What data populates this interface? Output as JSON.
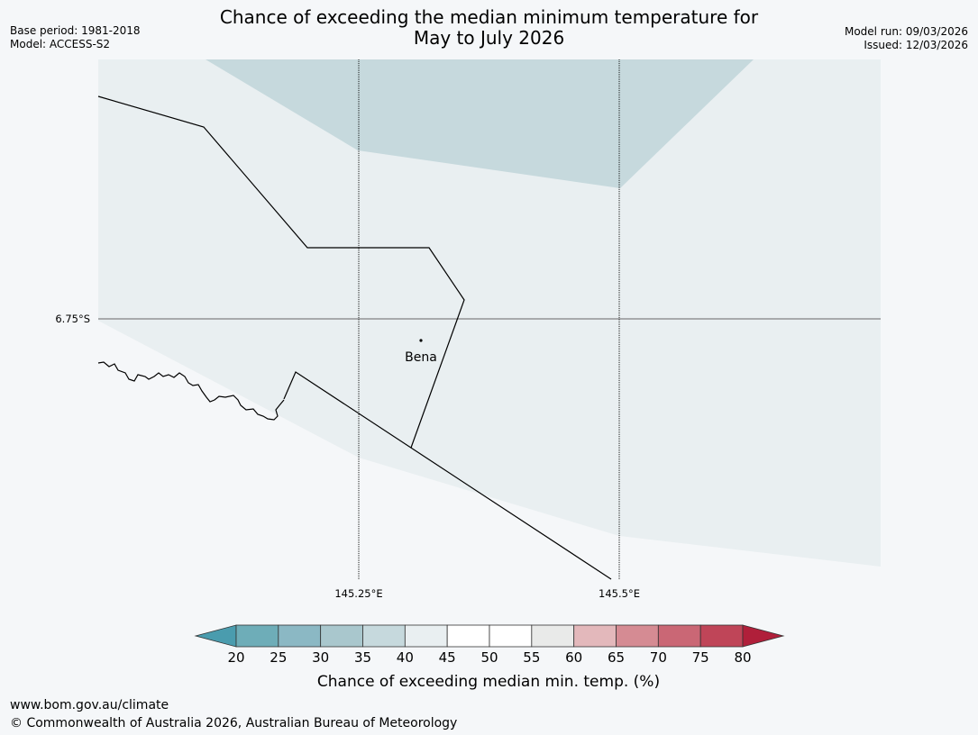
{
  "header": {
    "title_line1": "Chance of exceeding the median minimum temperature for",
    "title_line2": "May to July 2026",
    "base_period": "Base period: 1981-2018",
    "model": "Model: ACCESS-S2",
    "model_run": "Model run: 09/03/2026",
    "issued": "Issued: 12/03/2026"
  },
  "map": {
    "place_label": "Bena",
    "lat_label": "6.75°S",
    "lon_labels": [
      "145.25°E",
      "145.5°E"
    ],
    "colors": {
      "land_fill": "#e9eff1",
      "high_band_fill": "#c6d9dd",
      "ocean": "#f5f7f9",
      "grid": "#666666",
      "border": "#000000"
    }
  },
  "colorbar": {
    "ticks": [
      "20",
      "25",
      "30",
      "35",
      "40",
      "45",
      "50",
      "55",
      "60",
      "65",
      "70",
      "75",
      "80"
    ],
    "colors": [
      "#4a9cae",
      "#6eadb8",
      "#8bb8c4",
      "#a9c7cd",
      "#c6d9dd",
      "#e9eff1",
      "#ffffff",
      "#ffffff",
      "#e9eae9",
      "#e3b8bb",
      "#d58b93",
      "#ca6775",
      "#bf4558",
      "#b01f3a"
    ],
    "label": "Chance of exceeding median min. temp. (%)"
  },
  "footer": {
    "url": "www.bom.gov.au/climate",
    "copyright": "© Commonwealth of Australia 2026, Australian Bureau of Meteorology"
  }
}
